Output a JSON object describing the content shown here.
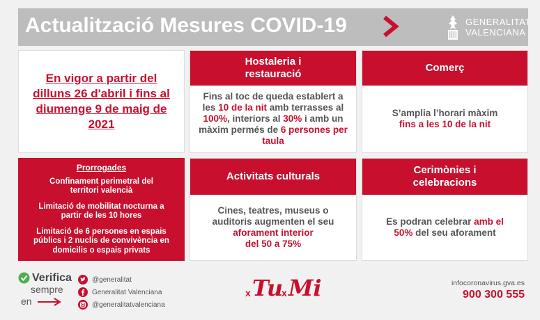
{
  "header": {
    "title": "Actualització Mesures COVID-19",
    "logo_line1": "GENERALITAT",
    "logo_line2": "VALENCIANA"
  },
  "date_card": {
    "text": "En vigor a partir del dilluns 26 d'abril i fins al diumenge 9 de maig de 2021"
  },
  "hostaleria": {
    "title": "Hostaleria i restauració",
    "t1": "Fins  al toc de queda establert a les ",
    "h1": "10 de la nit",
    "t2": " amb terrasses al ",
    "h2": "100%",
    "t3": ", interiors al ",
    "h3": "30%",
    "t4": " i amb un màxim permés de ",
    "h4": "6 persones per taula"
  },
  "comerc": {
    "title": "Comerç",
    "t1": "S’amplia l’horari màxim ",
    "h1": "fins a les 10 de la nit"
  },
  "prorrogades": {
    "title": "Prorrogades",
    "items": [
      "Confinament perimetral del territori valencià",
      "Limitació de mobilitat nocturna a partir de les 10 hores",
      "Limitació de 6 persones en espais públics i 2 nuclis de convivència en domicilis o espais privats"
    ]
  },
  "activitats": {
    "title": "Activitats culturals",
    "t1": "Cines, teatres, museus o auditoris augmenten el seu ",
    "h1": "aforament interior",
    "h2": "del 50 a 75%"
  },
  "ceremonies": {
    "title": "Cerimònies i celebracions",
    "t1": "Es podran celebrar ",
    "h1": "amb el 50%",
    "t2": " del seu aforament"
  },
  "footer": {
    "verifica": "Verifica",
    "sempre": "sempre",
    "en": "en",
    "twitter": "@generalitat",
    "facebook": "Generalitat Valenciana",
    "instagram": "@generalitatvalenciana",
    "tumi_x1": "x",
    "tumi_tu": "Tu",
    "tumi_x2": "x",
    "tumi_mi": "Mi",
    "url": "infocoronavirus.gva.es",
    "phone": "900 300 555"
  },
  "colors": {
    "accent": "#c8102e",
    "header_bg": "#bdbdbd"
  }
}
